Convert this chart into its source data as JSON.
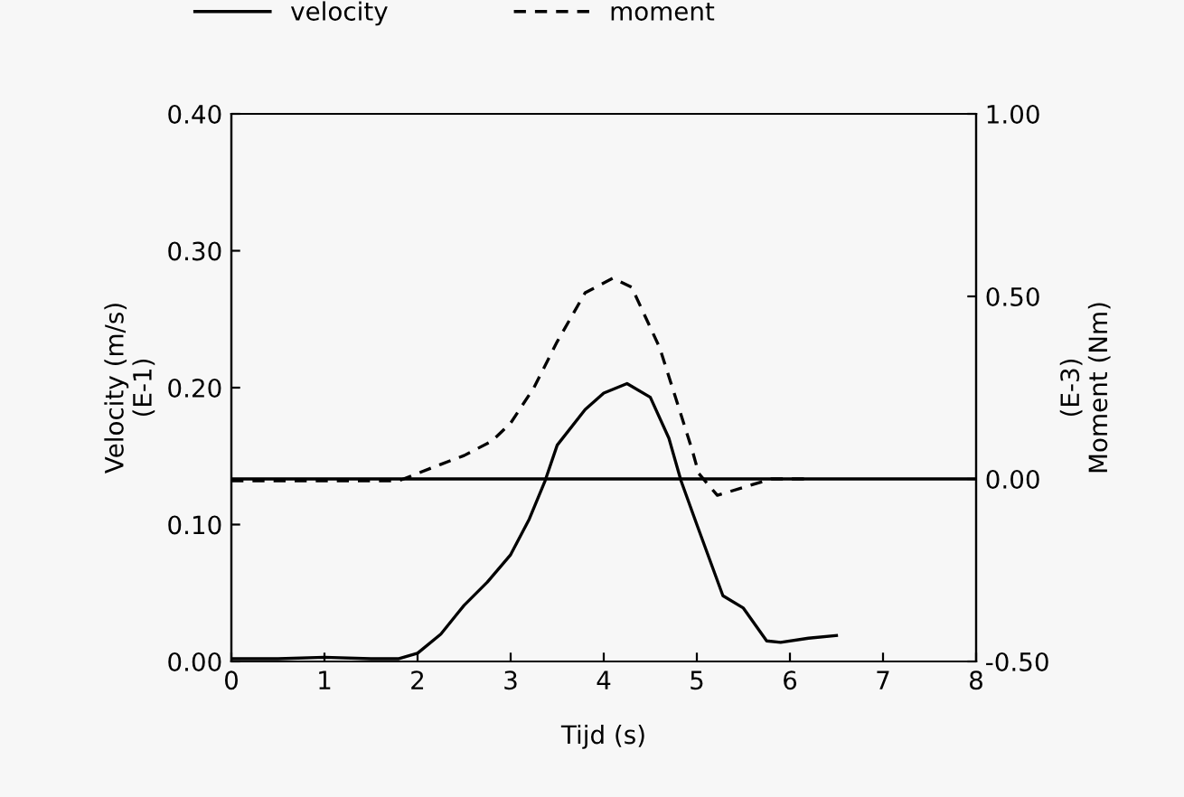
{
  "chart_data": {
    "type": "line",
    "xlabel": "Tijd (s)",
    "ylabel": "Velocity (m/s)\n(E-1)",
    "y2label": "(E-3)\nMoment (Nm)",
    "xlim": [
      0,
      8
    ],
    "xticks": [
      0,
      1,
      2,
      3,
      4,
      5,
      6,
      7,
      8
    ],
    "ylim": [
      0,
      0.4
    ],
    "yticks": [
      {
        "value": 0,
        "label": "0.00"
      },
      {
        "value": 0.1,
        "label": "0.10"
      },
      {
        "value": 0.2,
        "label": "0.20"
      },
      {
        "value": 0.3,
        "label": "0.30"
      },
      {
        "value": 0.4,
        "label": "0.40"
      }
    ],
    "y2lim": [
      -0.5,
      1
    ],
    "y2ticks": [
      {
        "value": -0.5,
        "label": "-0.50"
      },
      {
        "value": 0,
        "label": "0.00"
      },
      {
        "value": 0.5,
        "label": "0.50"
      },
      {
        "value": 1,
        "label": "1.00"
      }
    ],
    "legend": "top",
    "grid": false,
    "ref_lines": [
      {
        "axis": "y2",
        "value": 0,
        "label": null,
        "color": "#000000",
        "line_style": "solid"
      }
    ],
    "series": [
      {
        "name": "velocity",
        "color": "#000000",
        "line_style": "solid",
        "x": [
          0,
          0.5,
          1,
          1.5,
          1.8,
          2,
          2.25,
          2.5,
          2.75,
          3,
          3.2,
          3.37,
          3.5,
          3.8,
          4,
          4.25,
          4.5,
          4.7,
          4.83,
          5,
          5.28,
          5.5,
          5.75,
          5.9,
          6.2,
          6.5
        ],
        "values": [
          0.002,
          0.002,
          0.003,
          0.002,
          0.002,
          0.006,
          0.02,
          0.041,
          0.058,
          0.078,
          0.104,
          0.132,
          0.158,
          0.184,
          0.196,
          0.203,
          0.193,
          0.163,
          0.132,
          0.1,
          0.048,
          0.039,
          0.015,
          0.014,
          0.017,
          0.019
        ]
      },
      {
        "name": "moment",
        "color": "#000000",
        "line_style": "dashed",
        "axis": "y2",
        "x": [
          0,
          0.5,
          1,
          1.5,
          1.8,
          2,
          2.25,
          2.5,
          2.8,
          3,
          3.25,
          3.5,
          3.8,
          4.1,
          4.3,
          4.6,
          4.8,
          4.95,
          5.02,
          5.22,
          5.54,
          5.8,
          6.2
        ],
        "values": [
          -0.005,
          -0.005,
          -0.005,
          -0.005,
          -0.005,
          0.015,
          0.04,
          0.064,
          0.104,
          0.153,
          0.25,
          0.376,
          0.51,
          0.55,
          0.525,
          0.36,
          0.2,
          0.079,
          0.015,
          -0.045,
          -0.02,
          0,
          0
        ]
      }
    ]
  }
}
